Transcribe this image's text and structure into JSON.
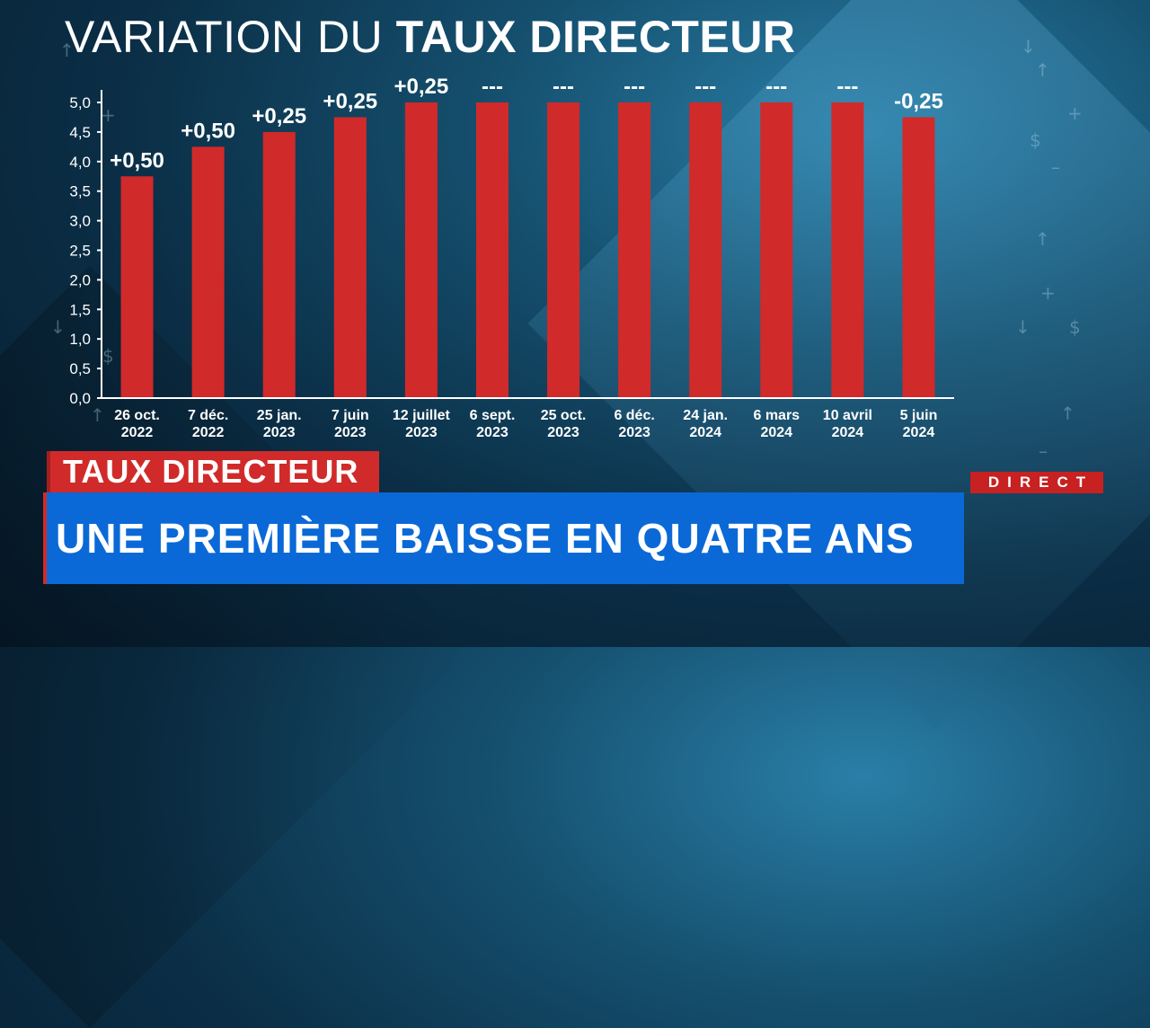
{
  "title": {
    "prefix": "VARIATION DU",
    "emphasis": "TAUX DIRECTEUR"
  },
  "banner": {
    "kicker": "TAUX DIRECTEUR",
    "headline": "UNE PREMIÈRE BAISSE EN QUATRE ANS"
  },
  "live_tag": "DIRECT",
  "colors": {
    "bar": "#d12a2a",
    "banner_blue": "#0a69d6",
    "kicker_red": "#d12a2a",
    "axis": "#ffffff"
  },
  "decorations": [
    "up-arrow-icon",
    "down-arrow-icon",
    "plus-icon",
    "minus-icon",
    "dollar-icon"
  ],
  "chart_data": {
    "type": "bar",
    "ylim": [
      0,
      5.0
    ],
    "yticks": [
      "0,0",
      "0,5",
      "1,0",
      "1,5",
      "2,0",
      "2,5",
      "3,0",
      "3,5",
      "4,0",
      "4,5",
      "5,0"
    ],
    "categories": [
      [
        "26 oct.",
        "2022"
      ],
      [
        "7 déc.",
        "2022"
      ],
      [
        "25 jan.",
        "2023"
      ],
      [
        "7 juin",
        "2023"
      ],
      [
        "12 juillet",
        "2023"
      ],
      [
        "6 sept.",
        "2023"
      ],
      [
        "25 oct.",
        "2023"
      ],
      [
        "6 déc.",
        "2023"
      ],
      [
        "24 jan.",
        "2024"
      ],
      [
        "6 mars",
        "2024"
      ],
      [
        "10 avril",
        "2024"
      ],
      [
        "5 juin",
        "2024"
      ]
    ],
    "values": [
      3.75,
      4.25,
      4.5,
      4.75,
      5.0,
      5.0,
      5.0,
      5.0,
      5.0,
      5.0,
      5.0,
      4.75
    ],
    "data_labels": [
      "+0,50",
      "+0,50",
      "+0,25",
      "+0,25",
      "+0,25",
      "---",
      "---",
      "---",
      "---",
      "---",
      "---",
      "-0,25"
    ],
    "grid": false
  }
}
